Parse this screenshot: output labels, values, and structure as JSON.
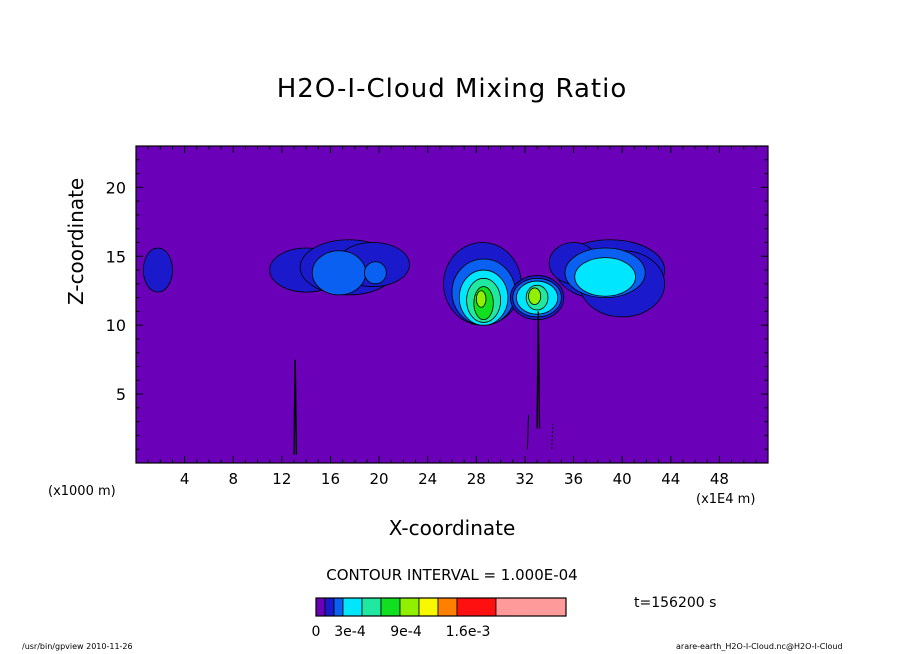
{
  "chart_data": {
    "type": "heatmap",
    "title": "H2O-I-Cloud Mixing Ratio",
    "xlabel": "X-coordinate",
    "ylabel": "Z-coordinate",
    "x_unit_left": "(x1000 m)",
    "x_unit_right": "(x1E4 m)",
    "xlim": [
      0,
      52
    ],
    "ylim": [
      0,
      23
    ],
    "x_ticks": [
      4,
      8,
      12,
      16,
      20,
      24,
      28,
      32,
      36,
      40,
      44,
      48
    ],
    "y_ticks": [
      5,
      10,
      15,
      20
    ],
    "contour_interval": "CONTOUR INTERVAL = 1.000E-04",
    "time_label": "t=156200 s",
    "colorbar": {
      "colors": [
        "#6a00b8",
        "#1a1acc",
        "#0a60f0",
        "#00e6ff",
        "#20e8a0",
        "#10e020",
        "#90f000",
        "#f8f800",
        "#ff8000",
        "#ff1010",
        "#ff9a9a"
      ],
      "labels": [
        "0",
        "3e-4",
        "9e-4",
        "1.6e-3"
      ]
    },
    "background_color": "#6a00b8",
    "cloud_features": [
      {
        "x": 1.8,
        "z": 14.0,
        "peak": "1e-4 to 2e-4"
      },
      {
        "x": 18.0,
        "z": 14.0,
        "peak": "2e-4 to 3e-4"
      },
      {
        "x": 28.5,
        "z": 12.0,
        "peak": "8e-4 to 1e-3"
      },
      {
        "x": 33.0,
        "z": 12.0,
        "peak": "8e-4 to 1e-3"
      },
      {
        "x": 38.5,
        "z": 13.5,
        "peak": "3e-4 to 4e-4"
      }
    ]
  },
  "footer": {
    "left": "/usr/bin/gpview   2010-11-26",
    "right": "arare-earth_H2O-I-Cloud.nc@H2O-I-Cloud"
  }
}
